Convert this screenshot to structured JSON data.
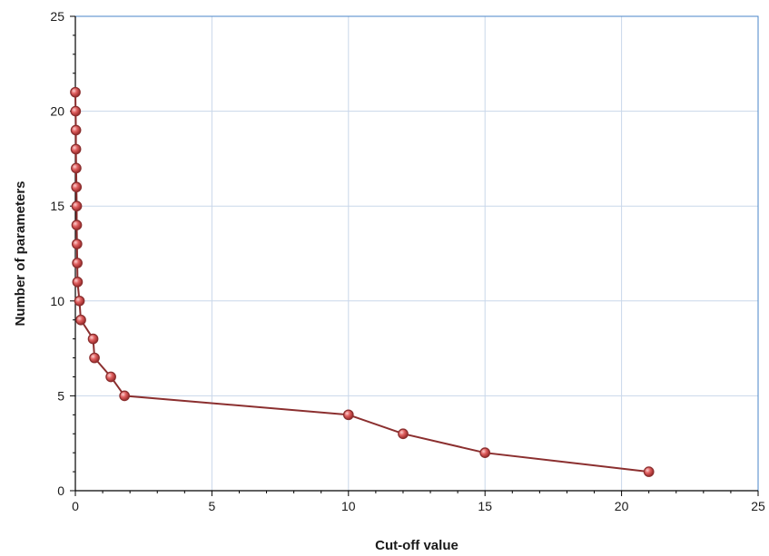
{
  "chart_data": {
    "type": "line",
    "title": "",
    "xlabel": "Cut-off value",
    "ylabel": "Number of parameters",
    "xlim": [
      0,
      25
    ],
    "ylim": [
      0,
      25
    ],
    "xticks": [
      "0",
      "5",
      "10",
      "15",
      "20",
      "25"
    ],
    "yticks": [
      "0",
      "5",
      "10",
      "15",
      "20",
      "25"
    ],
    "grid": true,
    "legend": "none",
    "colors": {
      "line": "#8b2f2f",
      "marker_fill": "#e05a5a",
      "grid": "#c9d7ea",
      "frame": "#4a86c8"
    },
    "series": [
      {
        "x": [
          0.0,
          0.01,
          0.02,
          0.02,
          0.03,
          0.04,
          0.05,
          0.05,
          0.06,
          0.07,
          0.08,
          0.15,
          0.2,
          0.65,
          0.7,
          1.3,
          1.8,
          10.0,
          12.0,
          15.0,
          21.0
        ],
        "y": [
          21,
          20,
          19,
          18,
          17,
          16,
          15,
          14,
          13,
          12,
          11,
          10,
          9,
          8,
          7,
          6,
          5,
          4,
          3,
          2,
          1
        ]
      }
    ]
  }
}
